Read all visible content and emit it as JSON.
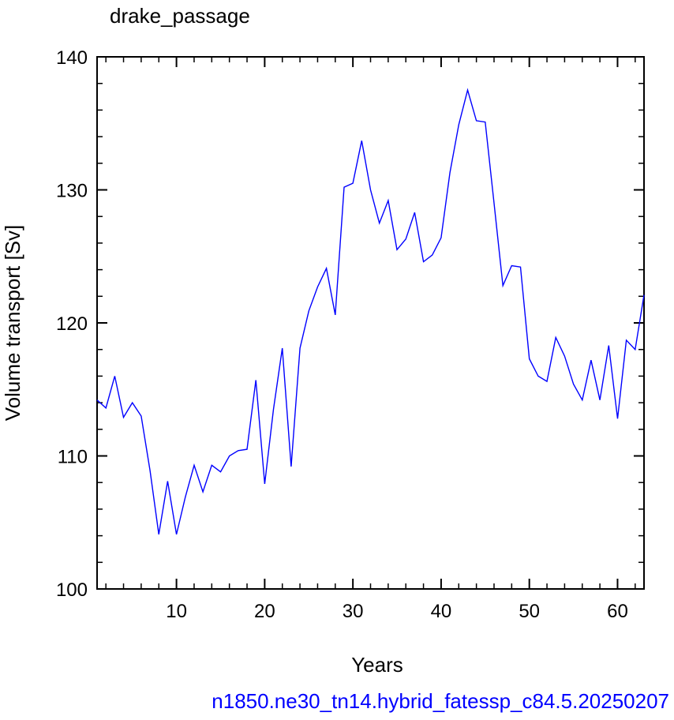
{
  "chart_data": {
    "type": "line",
    "title": "drake_passage",
    "xlabel": "Years",
    "ylabel": "Volume transport [Sv]",
    "xlim": [
      1,
      63
    ],
    "ylim": [
      100,
      140
    ],
    "xticks": [
      10,
      20,
      30,
      40,
      50,
      60
    ],
    "yticks": [
      100,
      110,
      120,
      130,
      140
    ],
    "grid": false,
    "line_color": "#0000ff",
    "footer": "n1850.ne30_tn14.hybrid_fatessp_c84.5.20250207",
    "x": [
      1,
      2,
      3,
      4,
      5,
      6,
      7,
      8,
      9,
      10,
      11,
      12,
      13,
      14,
      15,
      16,
      17,
      18,
      19,
      20,
      21,
      22,
      23,
      24,
      25,
      26,
      27,
      28,
      29,
      30,
      31,
      32,
      33,
      34,
      35,
      36,
      37,
      38,
      39,
      40,
      41,
      42,
      43,
      44,
      45,
      46,
      47,
      48,
      49,
      50,
      51,
      52,
      53,
      54,
      55,
      56,
      57,
      58,
      59,
      60,
      61,
      62,
      63
    ],
    "values": [
      114.2,
      113.6,
      116.0,
      112.9,
      114.0,
      113.0,
      108.9,
      104.1,
      108.1,
      104.1,
      106.9,
      109.3,
      107.3,
      109.3,
      108.8,
      110.0,
      110.4,
      110.5,
      115.7,
      107.9,
      113.5,
      118.1,
      109.2,
      118.1,
      120.9,
      122.7,
      124.1,
      120.6,
      130.2,
      130.5,
      133.7,
      130.0,
      127.5,
      129.2,
      125.5,
      126.3,
      128.3,
      124.6,
      125.1,
      126.4,
      131.3,
      134.9,
      137.5,
      135.2,
      135.1,
      129.0,
      122.8,
      124.3,
      124.2,
      117.3,
      116.0,
      115.6,
      118.9,
      117.5,
      115.4,
      114.2,
      117.2,
      114.2,
      118.3,
      112.8,
      118.7,
      118.0,
      122.1
    ]
  }
}
